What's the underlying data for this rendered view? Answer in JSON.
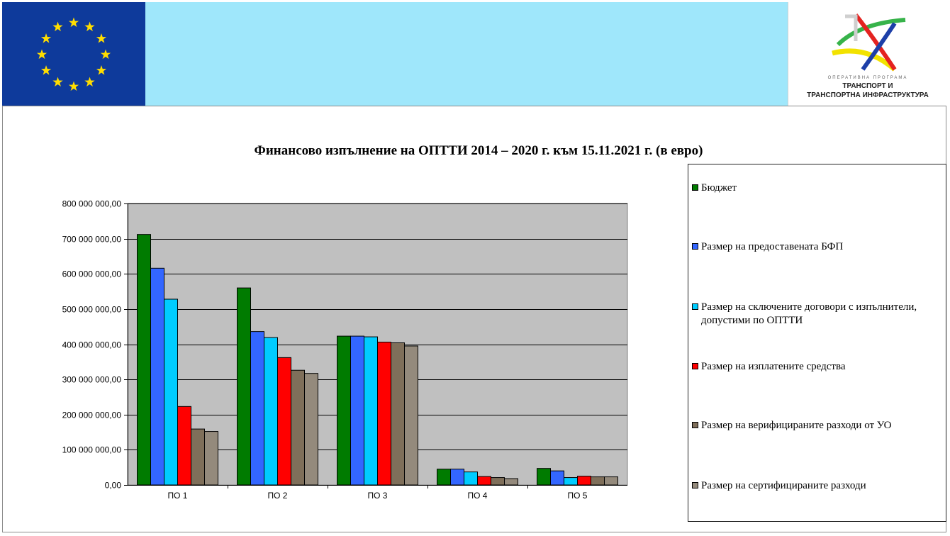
{
  "banner": {
    "colors": {
      "flag": "#0e3a9b",
      "stars": "#ffdd00",
      "mid": "#9fe7fb"
    },
    "logo": {
      "small_text": "ОПЕРАТИВНА ПРОГРАМА",
      "line1": "ТРАНСПОРТ И",
      "line2": "ТРАНСПОРТНА ИНФРАСТРУКТУРА"
    }
  },
  "chart_data": {
    "type": "bar",
    "title": "Финансово изпълнение на ОПТТИ 2014 – 2020 г. към 15.11.2021 г. (в евро)",
    "xlabel": "",
    "ylabel": "",
    "categories": [
      "ПО 1",
      "ПО 2",
      "ПО 3",
      "ПО 4",
      "ПО 5"
    ],
    "ylim": [
      0,
      800000000
    ],
    "yticks": [
      0,
      100000000,
      200000000,
      300000000,
      400000000,
      500000000,
      600000000,
      700000000,
      800000000
    ],
    "ytick_labels": [
      "0,00",
      "100 000 000,00",
      "200 000 000,00",
      "300 000 000,00",
      "400 000 000,00",
      "500 000 000,00",
      "600 000 000,00",
      "700 000 000,00",
      "800 000 000,00"
    ],
    "grid": true,
    "plot_background": "#c0c0c0",
    "legend_position": "right",
    "series": [
      {
        "name": "Бюджет",
        "color": "#007b00",
        "values": [
          712000000,
          560000000,
          423000000,
          45000000,
          47000000
        ]
      },
      {
        "name": "Размер на предоставената БФП",
        "color": "#3366ff",
        "values": [
          616000000,
          436000000,
          423000000,
          45000000,
          40000000
        ]
      },
      {
        "name": "Размер на сключените договори с изпълнители, допустими по ОПТТИ",
        "color": "#00ccff",
        "values": [
          528000000,
          419000000,
          421000000,
          37000000,
          21000000
        ]
      },
      {
        "name": "Размер на изплатените средства",
        "color": "#ff0000",
        "values": [
          223000000,
          362000000,
          406000000,
          24000000,
          25000000
        ]
      },
      {
        "name": "Размер на верифицираните разходи от УО",
        "color": "#7f6f5a",
        "values": [
          159000000,
          326000000,
          404000000,
          21000000,
          23000000
        ]
      },
      {
        "name": "Размер на сертифицираните разходи",
        "color": "#948a7c",
        "values": [
          152000000,
          317000000,
          395000000,
          18000000,
          23000000
        ]
      }
    ]
  }
}
